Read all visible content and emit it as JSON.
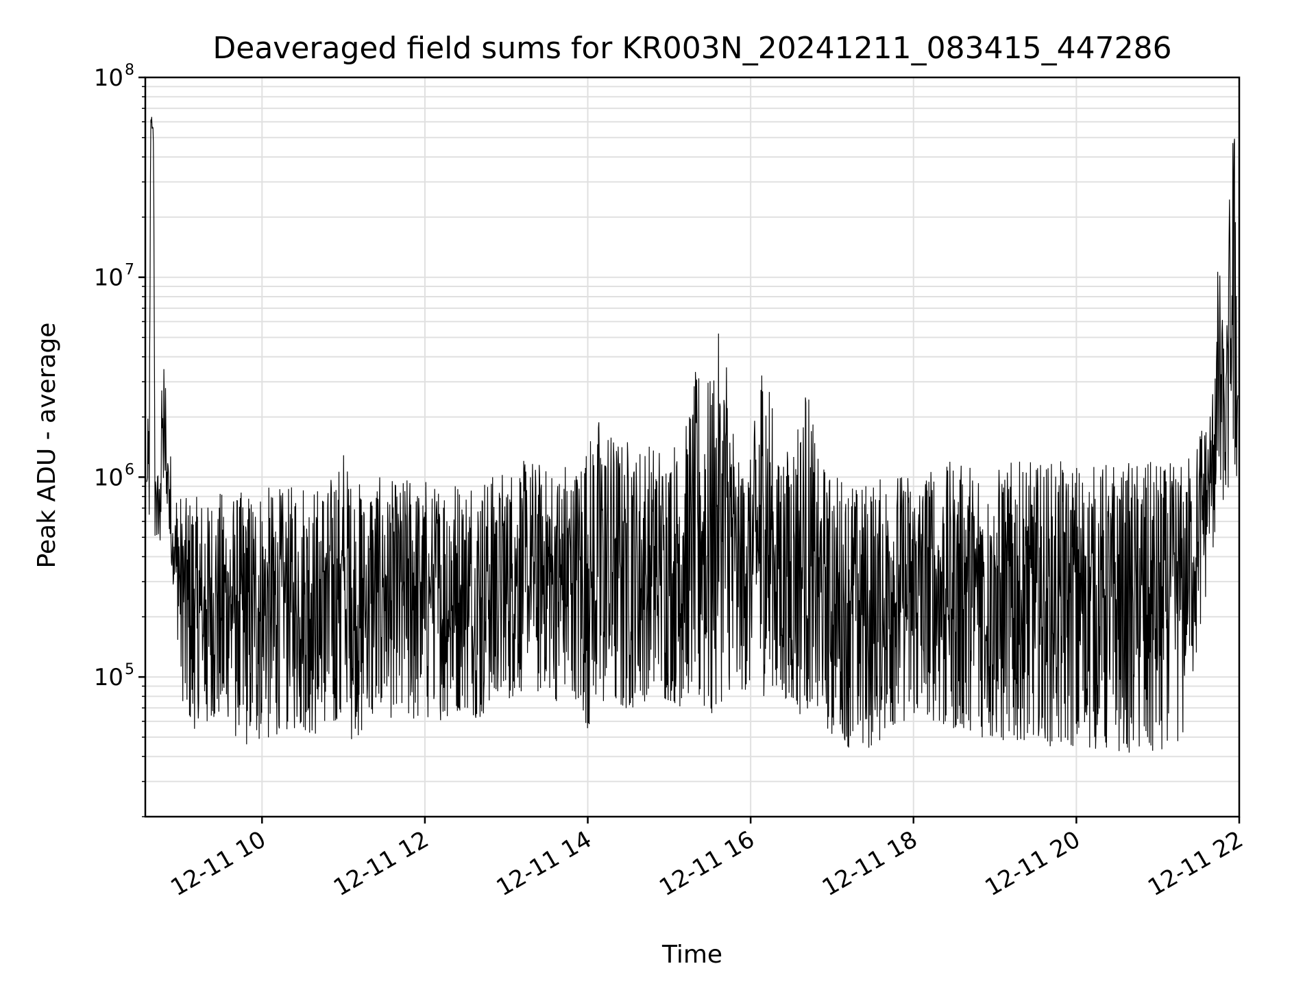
{
  "chart_data": {
    "type": "line",
    "title": "Deaveraged field sums for KR003N_20241211_083415_447286",
    "xlabel": "Time",
    "ylabel": "Peak ADU - average",
    "yscale": "log",
    "grid": true,
    "legend": "none",
    "xlim": [
      "2024-12-11 08:34",
      "2024-12-11 22:00"
    ],
    "ylim": [
      20000,
      100000000
    ],
    "x_ticks": [
      {
        "value": "2024-12-11 10:00",
        "label": "12-11 10"
      },
      {
        "value": "2024-12-11 12:00",
        "label": "12-11 12"
      },
      {
        "value": "2024-12-11 14:00",
        "label": "12-11 14"
      },
      {
        "value": "2024-12-11 16:00",
        "label": "12-11 16"
      },
      {
        "value": "2024-12-11 18:00",
        "label": "12-11 18"
      },
      {
        "value": "2024-12-11 20:00",
        "label": "12-11 20"
      },
      {
        "value": "2024-12-11 22:00",
        "label": "12-11 22"
      }
    ],
    "y_ticks": [
      {
        "value": 100000,
        "base": "10",
        "exp": "5"
      },
      {
        "value": 1000000,
        "base": "10",
        "exp": "6"
      },
      {
        "value": 10000000,
        "base": "10",
        "exp": "7"
      },
      {
        "value": 100000000,
        "base": "10",
        "exp": "8"
      }
    ],
    "line_color": "#000000",
    "grid_color": "#e0e0e0",
    "series": [
      {
        "x": [
          "2024-12-11 08:35",
          "2024-12-11 08:37",
          "2024-12-11 08:38",
          "2024-12-11 08:40",
          "2024-12-11 08:41",
          "2024-12-11 08:44",
          "2024-12-11 08:47",
          "2024-12-11 08:50",
          "2024-12-11 08:54",
          "2024-12-11 08:58",
          "2024-12-11 09:02",
          "2024-12-11 09:10",
          "2024-12-11 09:20",
          "2024-12-11 09:30",
          "2024-12-11 09:40",
          "2024-12-11 09:50",
          "2024-12-11 10:00",
          "2024-12-11 10:10",
          "2024-12-11 10:20",
          "2024-12-11 10:30",
          "2024-12-11 10:40",
          "2024-12-11 10:50",
          "2024-12-11 11:00",
          "2024-12-11 11:10",
          "2024-12-11 11:20",
          "2024-12-11 11:30",
          "2024-12-11 11:40",
          "2024-12-11 11:50",
          "2024-12-11 12:00",
          "2024-12-11 12:10",
          "2024-12-11 12:20",
          "2024-12-11 12:30",
          "2024-12-11 12:40",
          "2024-12-11 12:50",
          "2024-12-11 13:00",
          "2024-12-11 13:10",
          "2024-12-11 13:20",
          "2024-12-11 13:30",
          "2024-12-11 13:40",
          "2024-12-11 13:50",
          "2024-12-11 14:00",
          "2024-12-11 14:10",
          "2024-12-11 14:20",
          "2024-12-11 14:30",
          "2024-12-11 14:40",
          "2024-12-11 14:50",
          "2024-12-11 15:00",
          "2024-12-11 15:10",
          "2024-12-11 15:20",
          "2024-12-11 15:30",
          "2024-12-11 15:40",
          "2024-12-11 15:50",
          "2024-12-11 16:00",
          "2024-12-11 16:10",
          "2024-12-11 16:20",
          "2024-12-11 16:30",
          "2024-12-11 16:40",
          "2024-12-11 16:50",
          "2024-12-11 17:00",
          "2024-12-11 17:10",
          "2024-12-11 17:20",
          "2024-12-11 17:30",
          "2024-12-11 17:40",
          "2024-12-11 17:50",
          "2024-12-11 18:00",
          "2024-12-11 18:10",
          "2024-12-11 18:20",
          "2024-12-11 18:30",
          "2024-12-11 18:40",
          "2024-12-11 18:50",
          "2024-12-11 19:00",
          "2024-12-11 19:10",
          "2024-12-11 19:20",
          "2024-12-11 19:30",
          "2024-12-11 19:40",
          "2024-12-11 19:50",
          "2024-12-11 20:00",
          "2024-12-11 20:10",
          "2024-12-11 20:20",
          "2024-12-11 20:30",
          "2024-12-11 20:40",
          "2024-12-11 20:50",
          "2024-12-11 21:00",
          "2024-12-11 21:10",
          "2024-12-11 21:20",
          "2024-12-11 21:30",
          "2024-12-11 21:40",
          "2024-12-11 21:45",
          "2024-12-11 21:50",
          "2024-12-11 21:54",
          "2024-12-11 21:57",
          "2024-12-11 21:59"
        ],
        "low": [
          550000,
          600000,
          50000000,
          45000000,
          500000,
          400000,
          600000,
          500000,
          300000,
          150000,
          70000,
          55000,
          55000,
          65000,
          50000,
          45000,
          48000,
          50000,
          55000,
          55000,
          50000,
          55000,
          50000,
          48000,
          60000,
          65000,
          60000,
          58000,
          60000,
          60000,
          65000,
          70000,
          60000,
          70000,
          75000,
          85000,
          80000,
          90000,
          70000,
          80000,
          55000,
          60000,
          65000,
          70000,
          70000,
          80000,
          75000,
          70000,
          75000,
          60000,
          70000,
          80000,
          90000,
          80000,
          75000,
          70000,
          60000,
          60000,
          50000,
          45000,
          40000,
          40000,
          55000,
          60000,
          60000,
          65000,
          55000,
          55000,
          55000,
          50000,
          45000,
          45000,
          48000,
          50000,
          45000,
          45000,
          45000,
          42000,
          42000,
          40000,
          42000,
          42000,
          40000,
          45000,
          50000,
          150000,
          400000,
          700000,
          800000,
          900000,
          1000000,
          950000
        ],
        "high": [
          1600000,
          2500000,
          70000000,
          75000000,
          1500000,
          1000000,
          4500000,
          2800000,
          900000,
          850000,
          800000,
          800000,
          800000,
          850000,
          850000,
          850000,
          900000,
          900000,
          900000,
          1000000,
          900000,
          1000000,
          1500000,
          950000,
          1000000,
          1000000,
          950000,
          1100000,
          1000000,
          1000000,
          1000000,
          1000000,
          1100000,
          1100000,
          1100000,
          1200000,
          1300000,
          1100000,
          1200000,
          1300000,
          1500000,
          2300000,
          1800000,
          1600000,
          1500000,
          1500000,
          1600000,
          1500000,
          3600000,
          3200000,
          7000000,
          1200000,
          1300000,
          5300000,
          1400000,
          1500000,
          3600000,
          1200000,
          1100000,
          1000000,
          1000000,
          1000000,
          1000000,
          1100000,
          1100000,
          1200000,
          1200000,
          1200000,
          1200000,
          1200000,
          1200000,
          1200000,
          1200000,
          1200000,
          1200000,
          1200000,
          1200000,
          1200000,
          1200000,
          1200000,
          1200000,
          1200000,
          1200000,
          1200000,
          1300000,
          1800000,
          2500000,
          15000000,
          3000000,
          65000000,
          60000000,
          3300000
        ]
      }
    ]
  }
}
